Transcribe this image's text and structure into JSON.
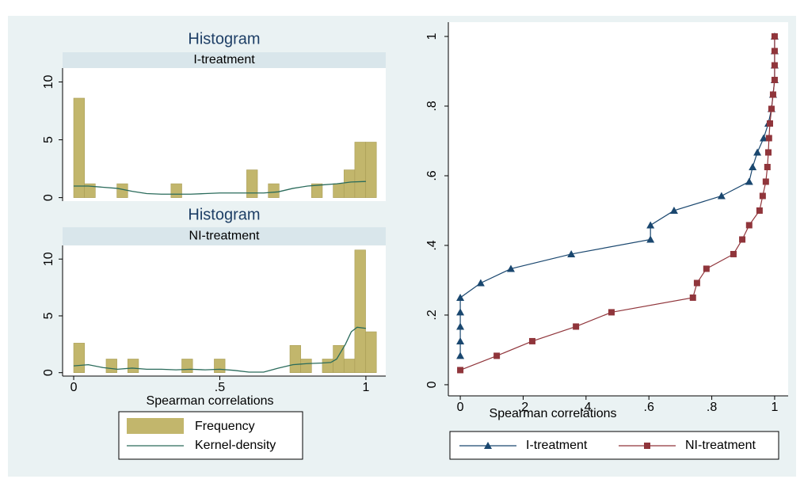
{
  "chart_data": [
    {
      "type": "histogram",
      "title": "Histogram",
      "subtitle": "I-treatment",
      "bins": [
        0,
        0.037,
        0.074,
        0.111,
        0.148,
        0.185,
        0.222,
        0.259,
        0.296,
        0.333,
        0.37,
        0.407,
        0.444,
        0.481,
        0.518,
        0.555,
        0.592,
        0.629,
        0.666,
        0.703,
        0.74,
        0.777,
        0.814,
        0.851,
        0.888,
        0.925,
        0.962,
        0.999,
        1.036
      ],
      "series": [
        {
          "color": "#c2b66c",
          "values": [
            8.6,
            1.2,
            0,
            0,
            1.2,
            0,
            0,
            0,
            0,
            1.2,
            0,
            0,
            0,
            0,
            0,
            0,
            2.4,
            0,
            1.2,
            0,
            0,
            0,
            1.2,
            0,
            1.2,
            2.4,
            4.8,
            4.8
          ]
        },
        {
          "color": "#2a6b5b",
          "x": [
            0,
            0.05,
            0.1,
            0.15,
            0.2,
            0.25,
            0.3,
            0.35,
            0.4,
            0.45,
            0.5,
            0.55,
            0.6,
            0.65,
            0.7,
            0.75,
            0.8,
            0.85,
            0.9,
            0.95,
            1.0
          ],
          "values": [
            1.0,
            1.0,
            0.9,
            0.8,
            0.55,
            0.35,
            0.3,
            0.3,
            0.3,
            0.35,
            0.4,
            0.4,
            0.4,
            0.4,
            0.5,
            0.8,
            1.0,
            1.1,
            1.2,
            1.35,
            1.4
          ]
        }
      ],
      "xlim": [
        -0.038,
        1.068
      ],
      "ylim": [
        -0.3,
        11.2
      ],
      "yticks": [
        0,
        5,
        10
      ]
    },
    {
      "type": "histogram",
      "title": "Histogram",
      "subtitle": "NI-treatment",
      "bins": [
        0,
        0.037,
        0.074,
        0.111,
        0.148,
        0.185,
        0.222,
        0.259,
        0.296,
        0.333,
        0.37,
        0.407,
        0.444,
        0.481,
        0.518,
        0.555,
        0.592,
        0.629,
        0.666,
        0.703,
        0.74,
        0.777,
        0.814,
        0.851,
        0.888,
        0.925,
        0.962,
        0.999,
        1.036
      ],
      "series": [
        {
          "name": "Frequency",
          "color": "#c2b66c",
          "values": [
            2.6,
            0,
            0,
            1.2,
            0,
            1.2,
            0,
            0,
            0,
            0,
            1.2,
            0,
            0,
            1.2,
            0,
            0,
            0,
            0,
            0,
            0,
            2.4,
            1.2,
            0,
            1.2,
            2.4,
            1.2,
            10.8,
            3.6
          ]
        },
        {
          "name": "Kernel-density",
          "color": "#2a6b5b",
          "x": [
            0,
            0.05,
            0.1,
            0.15,
            0.2,
            0.25,
            0.3,
            0.35,
            0.4,
            0.45,
            0.5,
            0.55,
            0.6,
            0.65,
            0.7,
            0.75,
            0.8,
            0.85,
            0.88,
            0.9,
            0.93,
            0.95,
            0.97,
            1.0
          ],
          "values": [
            0.6,
            0.7,
            0.45,
            0.3,
            0.4,
            0.3,
            0.3,
            0.25,
            0.3,
            0.25,
            0.3,
            0.2,
            0.05,
            0.05,
            0.4,
            0.7,
            0.8,
            0.85,
            0.9,
            1.2,
            2.5,
            3.6,
            4.0,
            3.9
          ]
        }
      ],
      "xlim": [
        -0.038,
        1.068
      ],
      "ylim": [
        -0.3,
        11.2
      ],
      "yticks": [
        0,
        5,
        10
      ],
      "xticks": [
        0,
        {
          "value": 0.5,
          "label": ".5"
        },
        1
      ],
      "xlabel": "Spearman correlations"
    },
    {
      "type": "line",
      "xlabel": "Spearman correlations",
      "series": [
        {
          "name": "I-treatment",
          "color": "#1a476f",
          "marker": "triangle",
          "x": [
            0,
            0,
            0,
            0,
            0,
            0.065,
            0.161,
            0.353,
            0.605,
            0.605,
            0.68,
            0.831,
            0.919,
            0.93,
            0.945,
            0.965,
            0.98,
            0.99,
            0.995,
            1,
            1,
            1,
            1
          ],
          "values": [
            0.083,
            0.125,
            0.167,
            0.208,
            0.25,
            0.292,
            0.333,
            0.375,
            0.417,
            0.458,
            0.5,
            0.542,
            0.583,
            0.625,
            0.667,
            0.708,
            0.75,
            0.792,
            0.833,
            0.875,
            0.917,
            0.958,
            1
          ]
        },
        {
          "name": "NI-treatment",
          "color": "#90353b",
          "marker": "square",
          "x": [
            0,
            0.116,
            0.229,
            0.368,
            0.481,
            0.74,
            0.753,
            0.783,
            0.869,
            0.897,
            0.919,
            0.952,
            0.962,
            0.972,
            0.977,
            0.98,
            0.982,
            0.985,
            0.99,
            0.995,
            1,
            1,
            1,
            1
          ],
          "values": [
            0.042,
            0.083,
            0.125,
            0.167,
            0.208,
            0.25,
            0.292,
            0.333,
            0.375,
            0.417,
            0.458,
            0.5,
            0.542,
            0.583,
            0.625,
            0.667,
            0.708,
            0.75,
            0.792,
            0.833,
            0.875,
            0.917,
            0.958,
            1
          ]
        }
      ],
      "xlim": [
        -0.038,
        1.043
      ],
      "ylim": [
        -0.032,
        1.041
      ],
      "xticks": [
        0,
        {
          "value": 0.2,
          "label": ".2"
        },
        {
          "value": 0.4,
          "label": ".4"
        },
        {
          "value": 0.6,
          "label": ".6"
        },
        {
          "value": 0.8,
          "label": ".8"
        },
        1
      ],
      "yticks": [
        0,
        {
          "value": 0.2,
          "label": ".2"
        },
        {
          "value": 0.4,
          "label": ".4"
        },
        {
          "value": 0.6,
          "label": ".6"
        },
        {
          "value": 0.8,
          "label": ".8"
        },
        1
      ]
    }
  ]
}
